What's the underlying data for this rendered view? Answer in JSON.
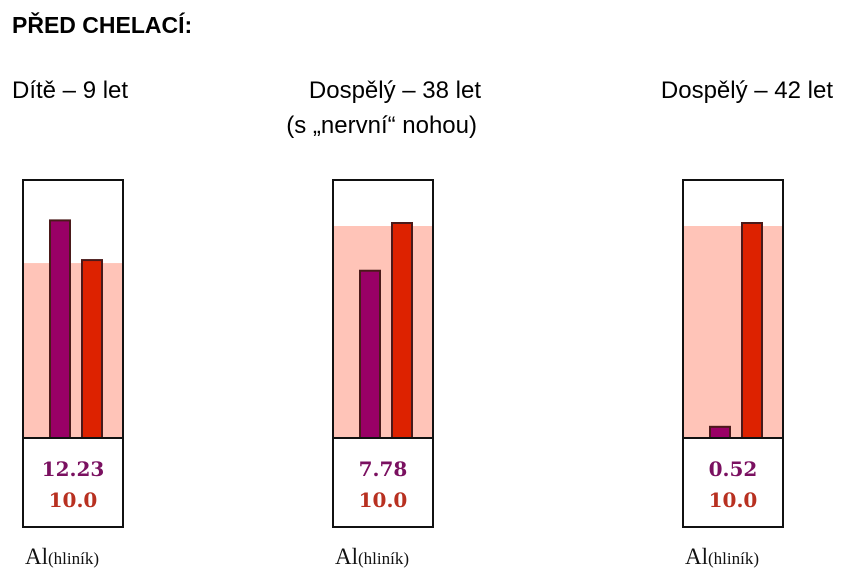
{
  "title": "PŘED CHELACÍ:",
  "chart_data": [
    {
      "type": "bar",
      "title": "Dítě – 9 let",
      "values": [
        12.23,
        10.0
      ],
      "value_labels": [
        "12.23",
        "10.0"
      ],
      "colors": [
        "#990066",
        "#dd2200"
      ],
      "band_color": "#ffc4b8",
      "ylim": [
        0,
        14.5
      ],
      "xlabel": "Al",
      "xlabel_note": "(hliník)"
    },
    {
      "type": "bar",
      "title": "Dospělý – 38 let",
      "subtitle": "(s „nervní“ nohou)",
      "values": [
        7.78,
        10.0
      ],
      "value_labels": [
        "7.78",
        "10.0"
      ],
      "colors": [
        "#990066",
        "#dd2200"
      ],
      "band_color": "#ffc4b8",
      "ylim": [
        0,
        12
      ],
      "xlabel": "Al",
      "xlabel_note": "(hliník)"
    },
    {
      "type": "bar",
      "title": "Dospělý – 42 let",
      "values": [
        0.52,
        10.0
      ],
      "value_labels": [
        "0.52",
        "10.0"
      ],
      "colors": [
        "#990066",
        "#dd2200"
      ],
      "band_color": "#ffc4b8",
      "ylim": [
        0,
        12
      ],
      "xlabel": "Al",
      "xlabel_note": "(hliník)"
    }
  ]
}
